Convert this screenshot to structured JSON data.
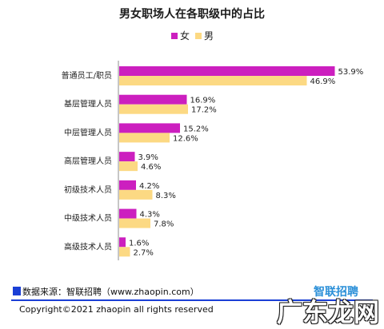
{
  "chart_data": {
    "type": "bar",
    "orientation": "horizontal",
    "title": "男女职场人在各职级中的占比",
    "categories": [
      "普通员工/职员",
      "基层管理人员",
      "中层管理人员",
      "高层管理人员",
      "初级技术人员",
      "中级技术人员",
      "高级技术人员"
    ],
    "series": [
      {
        "name": "女",
        "color": "#cc1fbf",
        "values": [
          53.9,
          16.9,
          15.2,
          3.9,
          4.2,
          4.3,
          1.6
        ],
        "labels": [
          "53.9%",
          "16.9%",
          "15.2%",
          "3.9%",
          "4.2%",
          "4.3%",
          "1.6%"
        ]
      },
      {
        "name": "男",
        "color": "#fcd983",
        "values": [
          46.9,
          17.2,
          12.6,
          4.6,
          8.3,
          7.8,
          2.7
        ],
        "labels": [
          "46.9%",
          "17.2%",
          "12.6%",
          "4.6%",
          "8.3%",
          "7.8%",
          "2.7%"
        ]
      }
    ],
    "xlim": [
      0,
      60
    ],
    "legend_position": "top-center",
    "grid": false
  },
  "footer": {
    "source": "数据来源：智联招聘（www.zhaopin.com）",
    "copyright": "Copyright©2021 zhaopin all rights reserved",
    "brand": "智联招聘",
    "watermark": "广东龙网"
  },
  "colors": {
    "female": "#cc1fbf",
    "male": "#fcd983",
    "accent": "#1a3fd6"
  }
}
